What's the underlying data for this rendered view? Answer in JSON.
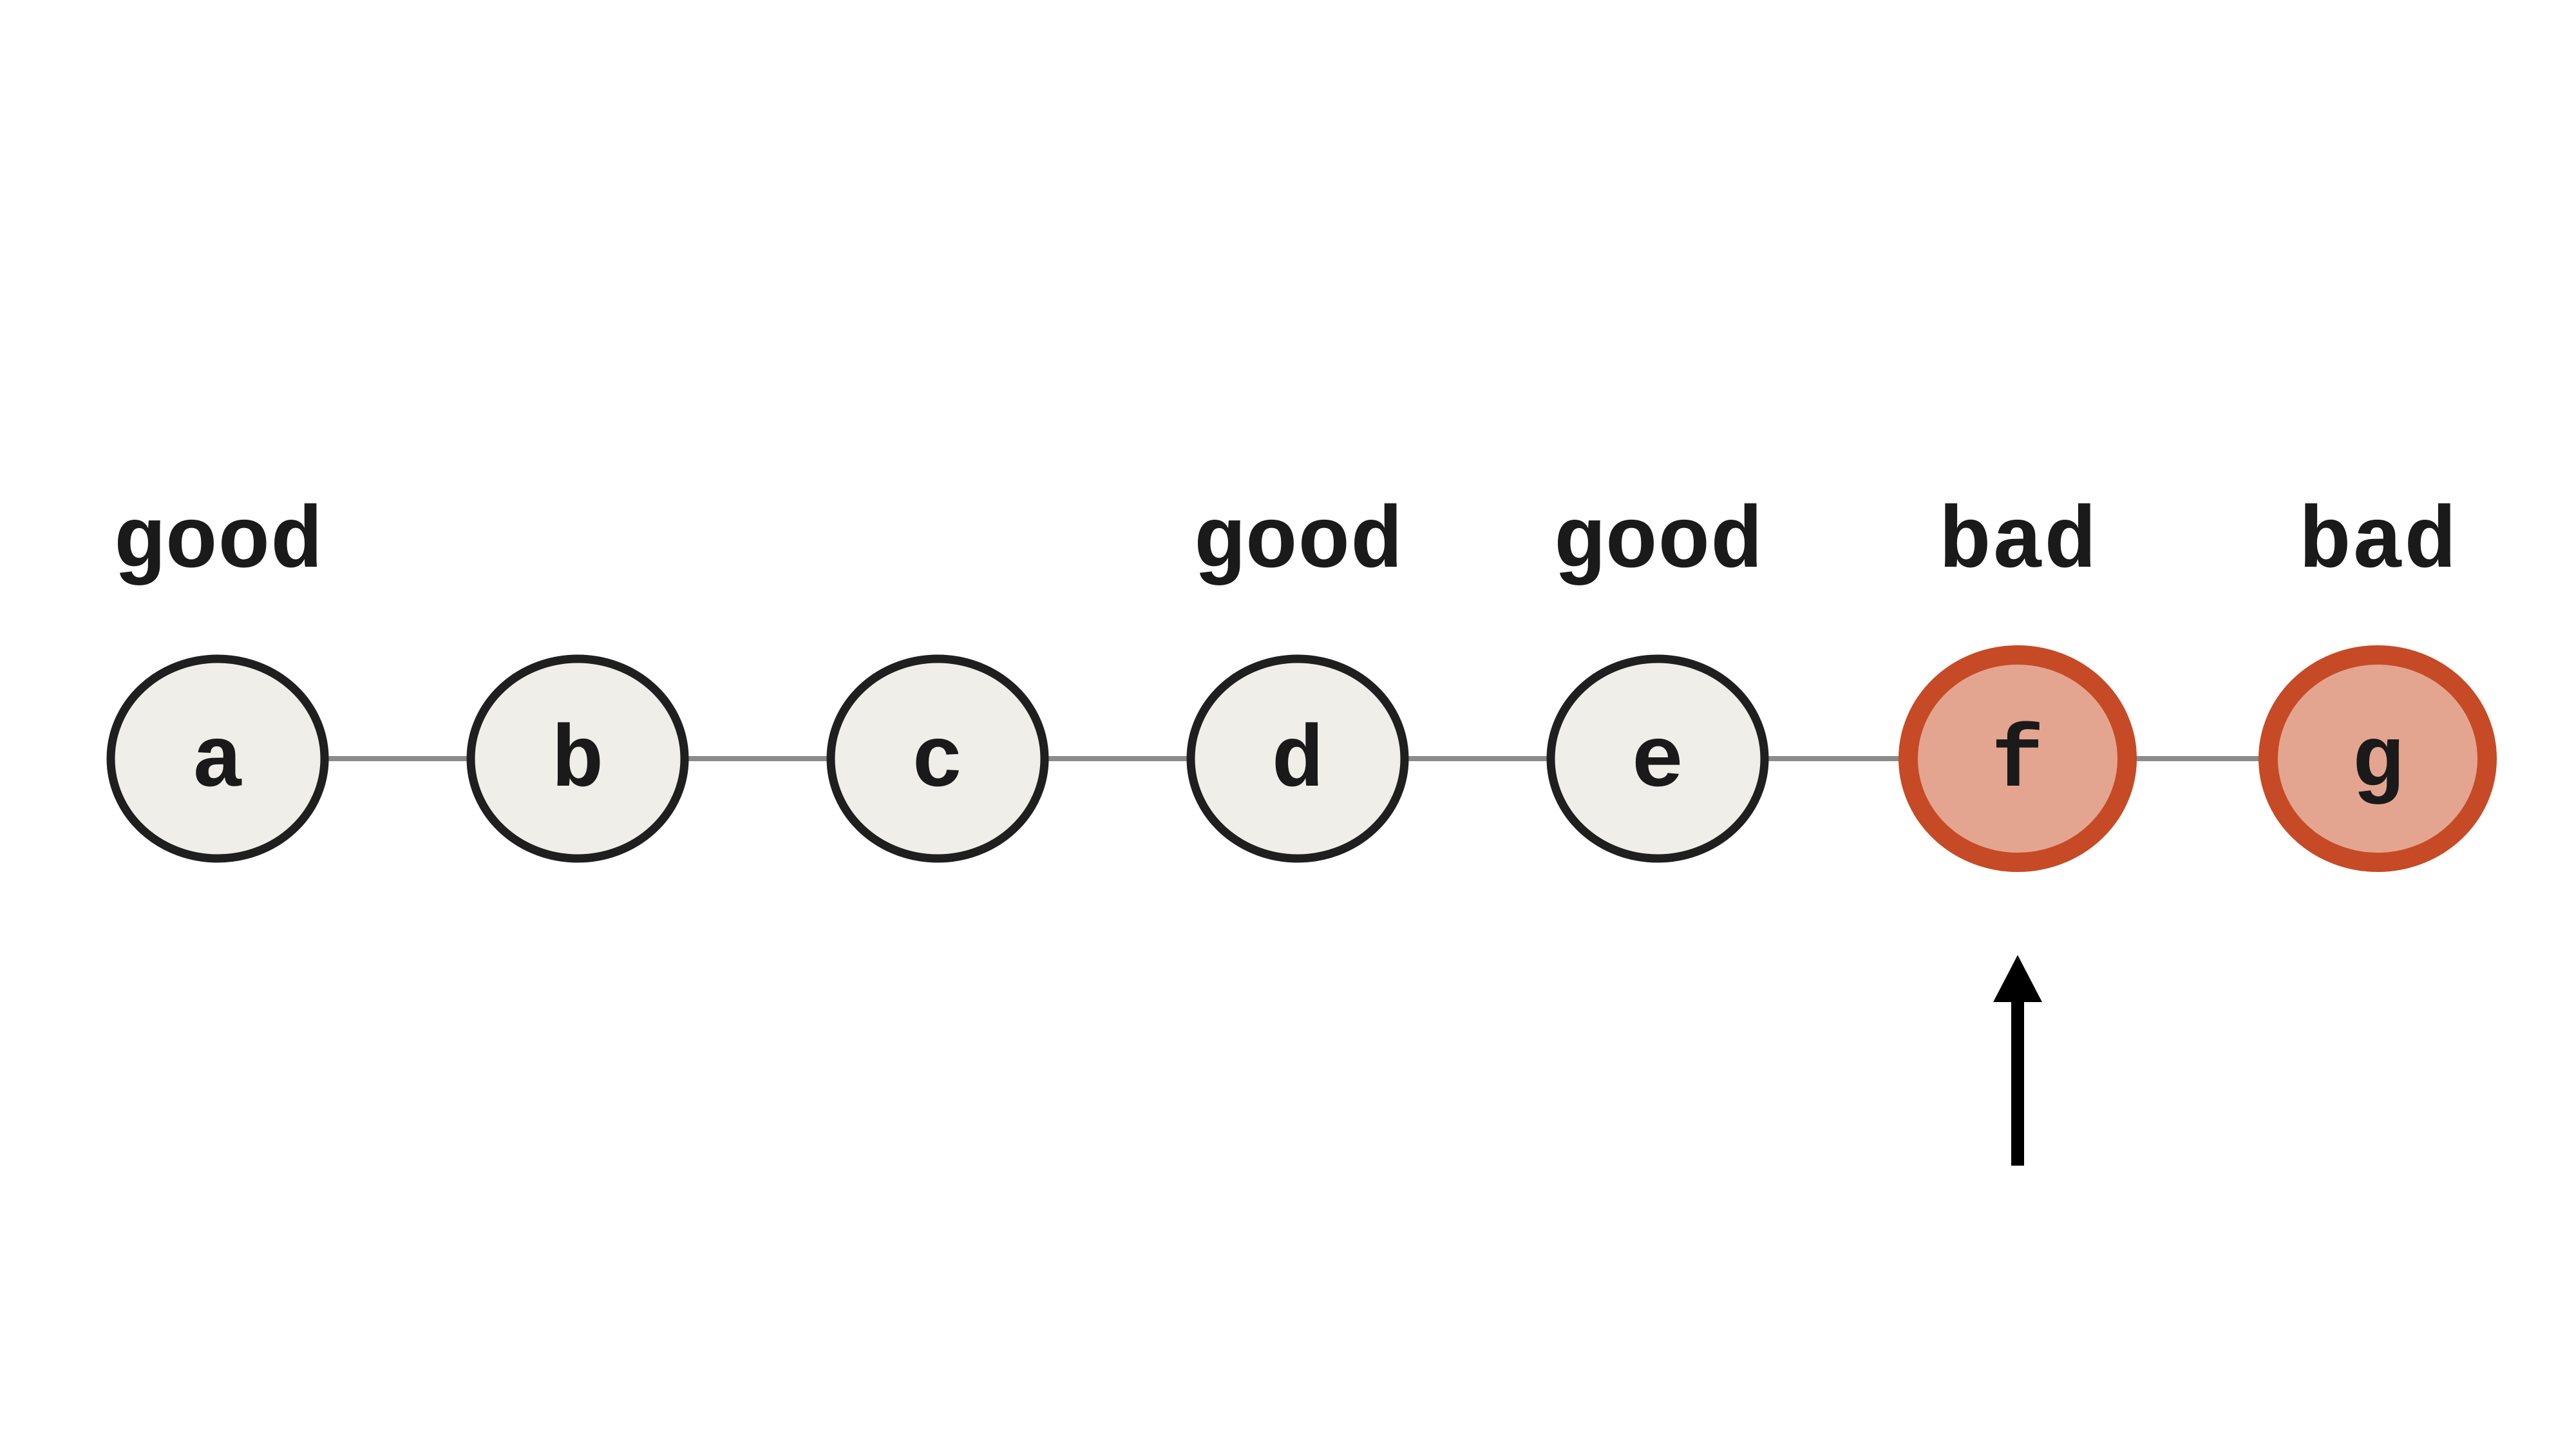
{
  "commits": [
    {
      "id": "a",
      "status": "good"
    },
    {
      "id": "b",
      "status": ""
    },
    {
      "id": "c",
      "status": ""
    },
    {
      "id": "d",
      "status": "good"
    },
    {
      "id": "e",
      "status": "good"
    },
    {
      "id": "f",
      "status": "bad"
    },
    {
      "id": "g",
      "status": "bad"
    }
  ],
  "pointer_target": "f",
  "colors": {
    "neutral_fill": "#efeee8",
    "neutral_stroke": "#1f1f1f",
    "bad_fill": "#e3a590",
    "bad_stroke": "#c64a26",
    "connector": "#8c8c8c",
    "arrow": "#000000",
    "text": "#1a1a1a"
  }
}
